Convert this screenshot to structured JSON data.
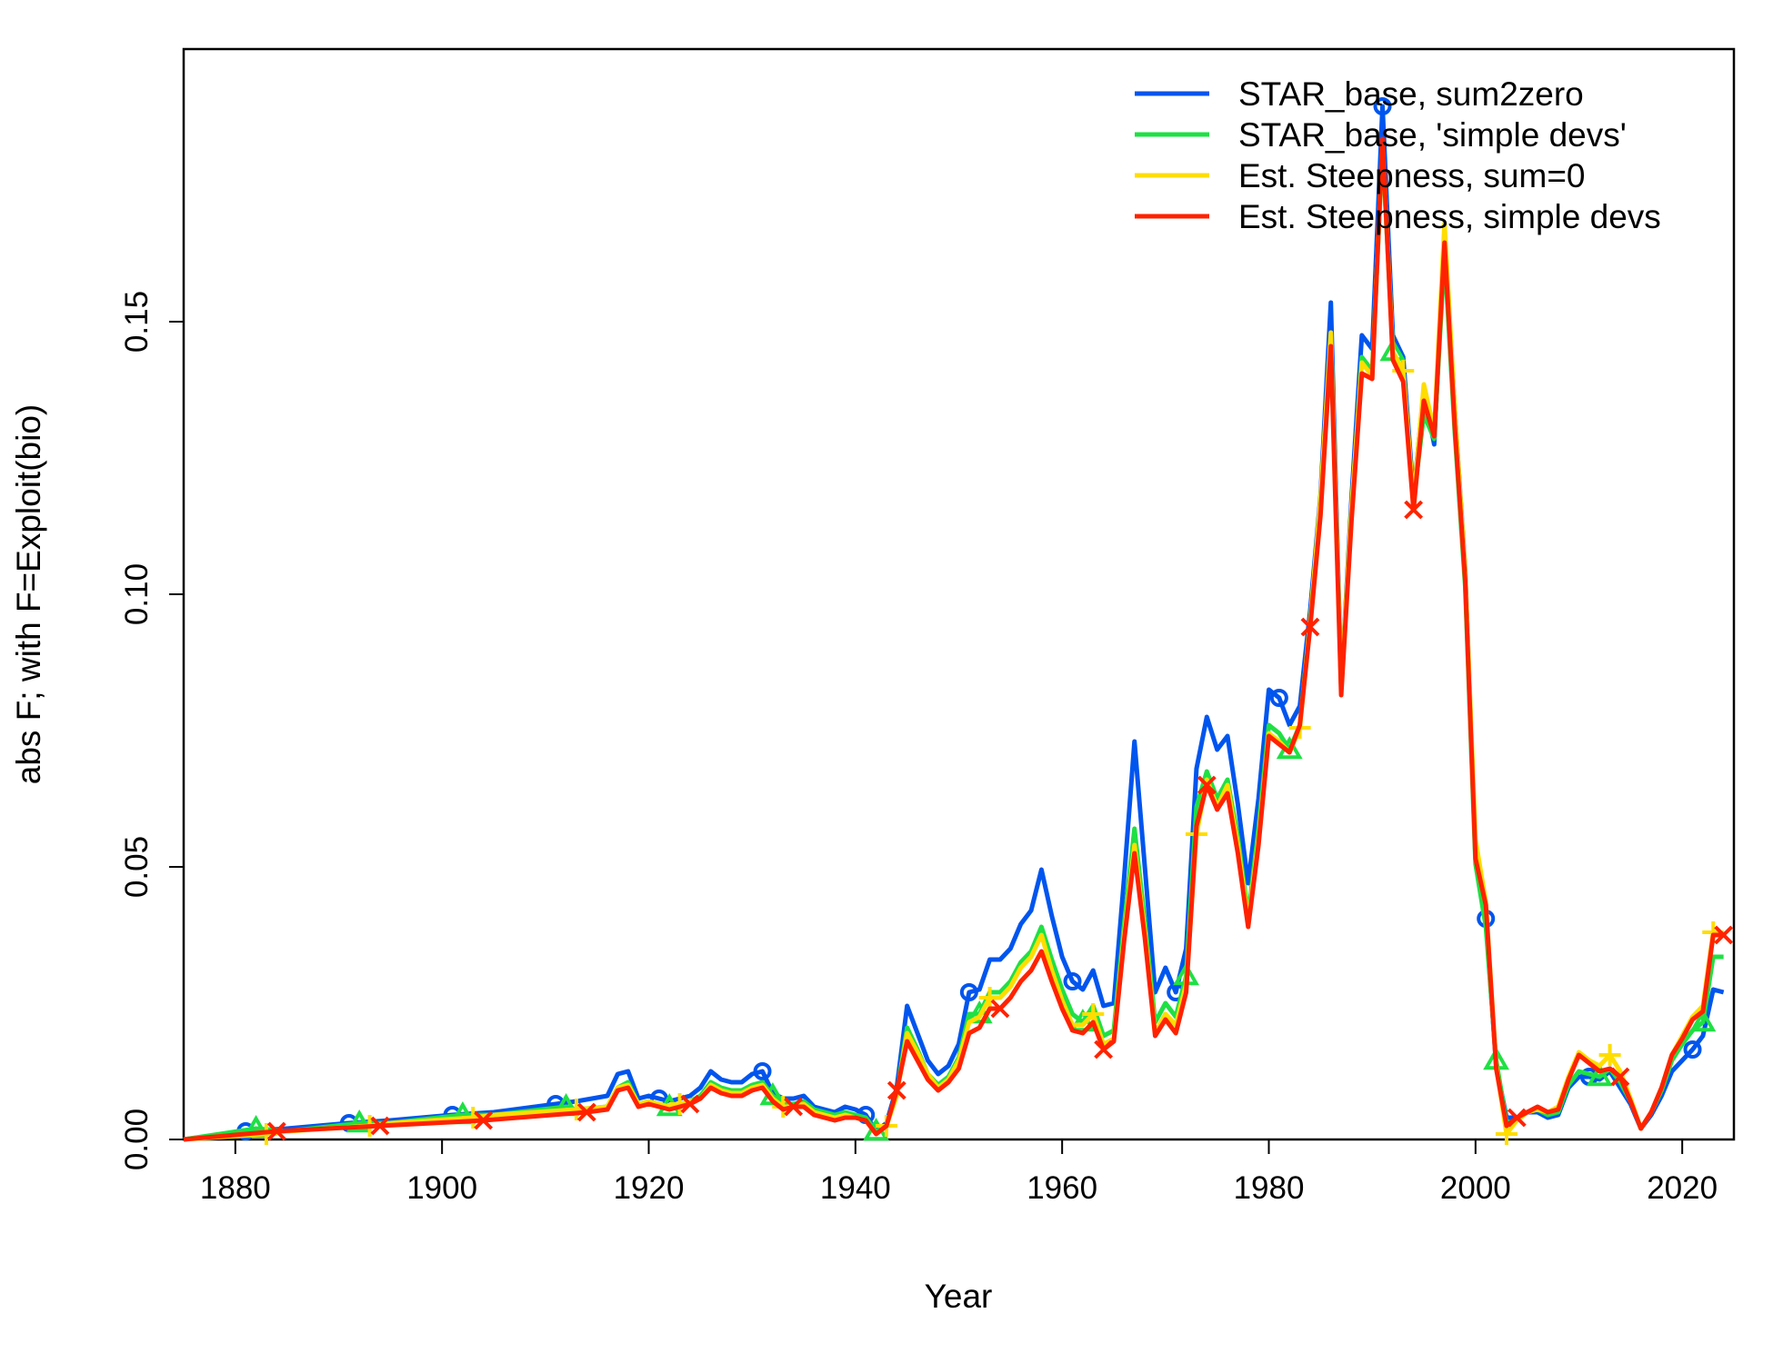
{
  "chart_data": {
    "type": "line",
    "title": "",
    "xlabel": "Year",
    "ylabel": "abs F; with F=Exploit(bio)",
    "xlim": [
      1875,
      2025
    ],
    "ylim": [
      0,
      0.2
    ],
    "x_ticks": [
      {
        "value": 1880,
        "label": "1880"
      },
      {
        "value": 1900,
        "label": "1900"
      },
      {
        "value": 1920,
        "label": "1920"
      },
      {
        "value": 1940,
        "label": "1940"
      },
      {
        "value": 1960,
        "label": "1960"
      },
      {
        "value": 1980,
        "label": "1980"
      },
      {
        "value": 2000,
        "label": "2000"
      },
      {
        "value": 2020,
        "label": "2020"
      }
    ],
    "y_ticks": [
      {
        "value": 0,
        "label": "0.00"
      },
      {
        "value": 0.05,
        "label": "0.05"
      },
      {
        "value": 0.1,
        "label": "0.10"
      },
      {
        "value": 0.15,
        "label": "0.15"
      }
    ],
    "grid": false,
    "legend": {
      "position": "top-right"
    },
    "series": [
      {
        "name": "STAR_base, sum2zero",
        "color": "#0055EE",
        "marker": "circle",
        "x": [
          1875,
          1881,
          1885,
          1891,
          1895,
          1901,
          1905,
          1911,
          1913,
          1916,
          1917,
          1918,
          1919,
          1920,
          1921,
          1922,
          1923,
          1924,
          1925,
          1926,
          1927,
          1928,
          1929,
          1930,
          1931,
          1932,
          1933,
          1934,
          1935,
          1936,
          1937,
          1938,
          1939,
          1940,
          1941,
          1942,
          1943,
          1944,
          1945,
          1946,
          1947,
          1948,
          1949,
          1950,
          1951,
          1952,
          1953,
          1954,
          1955,
          1956,
          1957,
          1958,
          1959,
          1960,
          1961,
          1962,
          1963,
          1964,
          1965,
          1966,
          1967,
          1968,
          1969,
          1970,
          1971,
          1972,
          1973,
          1974,
          1975,
          1976,
          1977,
          1978,
          1979,
          1980,
          1981,
          1982,
          1983,
          1984,
          1985,
          1986,
          1987,
          1988,
          1989,
          1990,
          1991,
          1992,
          1993,
          1994,
          1995,
          1996,
          1997,
          1998,
          1999,
          2000,
          2001,
          2002,
          2003,
          2004,
          2005,
          2006,
          2007,
          2008,
          2009,
          2010,
          2011,
          2012,
          2013,
          2014,
          2015,
          2016,
          2017,
          2018,
          2019,
          2020,
          2021,
          2022,
          2023,
          2024
        ],
        "y": [
          0,
          0.0015,
          0.002,
          0.003,
          0.0035,
          0.0045,
          0.005,
          0.0065,
          0.007,
          0.008,
          0.012,
          0.0125,
          0.0075,
          0.008,
          0.0075,
          0.007,
          0.0075,
          0.008,
          0.0095,
          0.0125,
          0.011,
          0.0105,
          0.0105,
          0.012,
          0.0125,
          0.0085,
          0.0075,
          0.0075,
          0.008,
          0.006,
          0.0055,
          0.005,
          0.006,
          0.0055,
          0.0045,
          0.0015,
          0.003,
          0.0095,
          0.0245,
          0.0195,
          0.0145,
          0.012,
          0.0135,
          0.0175,
          0.027,
          0.0275,
          0.033,
          0.033,
          0.035,
          0.0395,
          0.042,
          0.0495,
          0.041,
          0.0335,
          0.029,
          0.0275,
          0.031,
          0.0245,
          0.025,
          0.048,
          0.073,
          0.05,
          0.027,
          0.0315,
          0.027,
          0.035,
          0.068,
          0.0775,
          0.0715,
          0.074,
          0.0615,
          0.047,
          0.0625,
          0.0825,
          0.081,
          0.076,
          0.0795,
          0.097,
          0.118,
          0.1535,
          0.083,
          0.1175,
          0.1475,
          0.145,
          0.1895,
          0.1475,
          0.1435,
          0.118,
          0.1375,
          0.1275,
          0.1665,
          0.1335,
          0.1045,
          0.0525,
          0.0405,
          0.0135,
          0.004,
          0.004,
          0.005,
          0.005,
          0.004,
          0.0045,
          0.0095,
          0.0115,
          0.0115,
          0.011,
          0.0125,
          0.0095,
          0.0065,
          0.002,
          0.0045,
          0.008,
          0.0125,
          0.0145,
          0.0165,
          0.019,
          0.0275,
          0.027
        ]
      },
      {
        "name": "STAR_base, 'simple devs'",
        "color": "#1FE044",
        "marker": "triangle",
        "x": [
          1875,
          1882,
          1885,
          1892,
          1895,
          1902,
          1905,
          1912,
          1913,
          1916,
          1917,
          1918,
          1919,
          1920,
          1921,
          1922,
          1923,
          1924,
          1925,
          1926,
          1927,
          1928,
          1929,
          1930,
          1931,
          1932,
          1933,
          1934,
          1935,
          1936,
          1937,
          1938,
          1939,
          1940,
          1941,
          1942,
          1943,
          1944,
          1945,
          1946,
          1947,
          1948,
          1949,
          1950,
          1951,
          1952,
          1953,
          1954,
          1955,
          1956,
          1957,
          1958,
          1959,
          1960,
          1961,
          1962,
          1963,
          1964,
          1965,
          1966,
          1967,
          1968,
          1969,
          1970,
          1971,
          1972,
          1973,
          1974,
          1975,
          1976,
          1977,
          1978,
          1979,
          1980,
          1981,
          1982,
          1983,
          1984,
          1985,
          1986,
          1987,
          1988,
          1989,
          1990,
          1991,
          1992,
          1993,
          1994,
          1995,
          1996,
          1997,
          1998,
          1999,
          2000,
          2001,
          2002,
          2003,
          2004,
          2005,
          2006,
          2007,
          2008,
          2009,
          2010,
          2011,
          2012,
          2013,
          2014,
          2015,
          2016,
          2017,
          2018,
          2019,
          2020,
          2021,
          2022,
          2023,
          2024
        ],
        "y": [
          0,
          0.002,
          0.0015,
          0.003,
          0.003,
          0.0045,
          0.0045,
          0.006,
          0.0055,
          0.006,
          0.0095,
          0.0105,
          0.0065,
          0.007,
          0.0065,
          0.006,
          0.0065,
          0.007,
          0.008,
          0.0105,
          0.0095,
          0.009,
          0.009,
          0.01,
          0.0105,
          0.008,
          0.0065,
          0.0065,
          0.007,
          0.0055,
          0.005,
          0.0045,
          0.005,
          0.0045,
          0.004,
          0.0015,
          0.0025,
          0.0085,
          0.0205,
          0.0165,
          0.012,
          0.01,
          0.0115,
          0.015,
          0.023,
          0.023,
          0.027,
          0.027,
          0.029,
          0.0325,
          0.0345,
          0.039,
          0.033,
          0.0275,
          0.023,
          0.0215,
          0.0245,
          0.019,
          0.02,
          0.0395,
          0.057,
          0.04,
          0.0215,
          0.025,
          0.0225,
          0.03,
          0.061,
          0.0675,
          0.0625,
          0.066,
          0.0555,
          0.041,
          0.057,
          0.076,
          0.0745,
          0.0715,
          0.076,
          0.095,
          0.116,
          0.1475,
          0.083,
          0.115,
          0.1435,
          0.141,
          0.182,
          0.1445,
          0.14,
          0.117,
          0.133,
          0.1285,
          0.1625,
          0.1295,
          0.1015,
          0.0505,
          0.039,
          0.0145,
          0.003,
          0.0035,
          0.005,
          0.0055,
          0.0045,
          0.005,
          0.01,
          0.0125,
          0.012,
          0.0115,
          0.013,
          0.0105,
          0.007,
          0.002,
          0.005,
          0.009,
          0.0145,
          0.0175,
          0.02,
          0.0215,
          0.0335,
          0.0335
        ]
      },
      {
        "name": "Est. Steepness, sum=0",
        "color": "#FFDD00",
        "marker": "plus",
        "x": [
          1875,
          1883,
          1885,
          1893,
          1895,
          1903,
          1905,
          1913,
          1916,
          1917,
          1918,
          1919,
          1920,
          1921,
          1922,
          1923,
          1924,
          1925,
          1926,
          1927,
          1928,
          1929,
          1930,
          1931,
          1932,
          1933,
          1934,
          1935,
          1936,
          1937,
          1938,
          1939,
          1940,
          1941,
          1942,
          1943,
          1944,
          1945,
          1946,
          1947,
          1948,
          1949,
          1950,
          1951,
          1952,
          1953,
          1954,
          1955,
          1956,
          1957,
          1958,
          1959,
          1960,
          1961,
          1962,
          1963,
          1964,
          1965,
          1966,
          1967,
          1968,
          1969,
          1970,
          1971,
          1972,
          1973,
          1974,
          1975,
          1976,
          1977,
          1978,
          1979,
          1980,
          1981,
          1982,
          1983,
          1984,
          1985,
          1986,
          1987,
          1988,
          1989,
          1990,
          1991,
          1992,
          1993,
          1994,
          1995,
          1996,
          1997,
          1998,
          1999,
          2000,
          2001,
          2002,
          2003,
          2004,
          2005,
          2006,
          2007,
          2008,
          2009,
          2010,
          2011,
          2012,
          2013,
          2014,
          2015,
          2016,
          2017,
          2018,
          2019,
          2020,
          2021,
          2022,
          2023,
          2024
        ],
        "y": [
          0,
          0.001,
          0.0015,
          0.0025,
          0.003,
          0.004,
          0.0045,
          0.0055,
          0.006,
          0.0095,
          0.01,
          0.0065,
          0.007,
          0.0065,
          0.006,
          0.0065,
          0.007,
          0.0075,
          0.01,
          0.009,
          0.0085,
          0.0085,
          0.0095,
          0.01,
          0.0075,
          0.006,
          0.006,
          0.0065,
          0.005,
          0.0045,
          0.004,
          0.0045,
          0.004,
          0.0035,
          0.001,
          0.0025,
          0.008,
          0.0195,
          0.016,
          0.012,
          0.0095,
          0.011,
          0.0145,
          0.0215,
          0.0225,
          0.026,
          0.026,
          0.028,
          0.0315,
          0.0335,
          0.0375,
          0.031,
          0.0255,
          0.021,
          0.021,
          0.023,
          0.0175,
          0.0185,
          0.0375,
          0.054,
          0.038,
          0.0195,
          0.023,
          0.021,
          0.0285,
          0.056,
          0.066,
          0.061,
          0.065,
          0.054,
          0.04,
          0.055,
          0.0745,
          0.073,
          0.071,
          0.0755,
          0.095,
          0.1175,
          0.148,
          0.083,
          0.116,
          0.1425,
          0.14,
          0.183,
          0.1445,
          0.141,
          0.117,
          0.1385,
          0.13,
          0.168,
          0.1335,
          0.104,
          0.055,
          0.0435,
          0.0135,
          0.001,
          0.0035,
          0.005,
          0.0055,
          0.005,
          0.006,
          0.0115,
          0.016,
          0.0145,
          0.0135,
          0.0155,
          0.0125,
          0.0075,
          0.002,
          0.005,
          0.0095,
          0.0155,
          0.019,
          0.0225,
          0.0245,
          0.038,
          0.0375
        ]
      },
      {
        "name": "Est. Steepness, simple devs",
        "color": "#FF2200",
        "marker": "cross",
        "x": [
          1875,
          1884,
          1894,
          1904,
          1914,
          1916,
          1917,
          1918,
          1919,
          1920,
          1921,
          1922,
          1923,
          1924,
          1925,
          1926,
          1927,
          1928,
          1929,
          1930,
          1931,
          1932,
          1933,
          1934,
          1935,
          1936,
          1937,
          1938,
          1939,
          1940,
          1941,
          1942,
          1943,
          1944,
          1945,
          1946,
          1947,
          1948,
          1949,
          1950,
          1951,
          1952,
          1953,
          1954,
          1955,
          1956,
          1957,
          1958,
          1959,
          1960,
          1961,
          1962,
          1963,
          1964,
          1965,
          1966,
          1967,
          1968,
          1969,
          1970,
          1971,
          1972,
          1973,
          1974,
          1975,
          1976,
          1977,
          1978,
          1979,
          1980,
          1981,
          1982,
          1983,
          1984,
          1985,
          1986,
          1987,
          1988,
          1989,
          1990,
          1991,
          1992,
          1993,
          1994,
          1995,
          1996,
          1997,
          1998,
          1999,
          2000,
          2001,
          2002,
          2003,
          2004,
          2005,
          2006,
          2007,
          2008,
          2009,
          2010,
          2011,
          2012,
          2013,
          2014,
          2015,
          2016,
          2017,
          2018,
          2019,
          2020,
          2021,
          2022,
          2023,
          2024
        ],
        "y": [
          0,
          0.0015,
          0.0025,
          0.0035,
          0.005,
          0.0055,
          0.009,
          0.0095,
          0.006,
          0.0065,
          0.006,
          0.0055,
          0.006,
          0.0065,
          0.0075,
          0.0095,
          0.0085,
          0.008,
          0.008,
          0.009,
          0.0095,
          0.007,
          0.0055,
          0.006,
          0.006,
          0.0045,
          0.004,
          0.0035,
          0.004,
          0.004,
          0.0035,
          0.001,
          0.0025,
          0.009,
          0.018,
          0.0145,
          0.011,
          0.009,
          0.0105,
          0.013,
          0.0195,
          0.0205,
          0.024,
          0.024,
          0.026,
          0.029,
          0.031,
          0.0345,
          0.029,
          0.024,
          0.02,
          0.0195,
          0.0215,
          0.0165,
          0.018,
          0.0365,
          0.0525,
          0.037,
          0.019,
          0.022,
          0.0195,
          0.027,
          0.0575,
          0.065,
          0.0605,
          0.0635,
          0.0525,
          0.039,
          0.054,
          0.074,
          0.0725,
          0.071,
          0.076,
          0.094,
          0.1145,
          0.1455,
          0.0815,
          0.1135,
          0.1405,
          0.1395,
          0.1835,
          0.143,
          0.139,
          0.1155,
          0.1355,
          0.129,
          0.1645,
          0.1305,
          0.1025,
          0.0515,
          0.043,
          0.013,
          0.0025,
          0.004,
          0.005,
          0.006,
          0.005,
          0.0055,
          0.011,
          0.0155,
          0.014,
          0.0125,
          0.013,
          0.0115,
          0.007,
          0.002,
          0.005,
          0.0095,
          0.0155,
          0.0185,
          0.022,
          0.0235,
          0.0375,
          0.0375
        ]
      }
    ]
  }
}
